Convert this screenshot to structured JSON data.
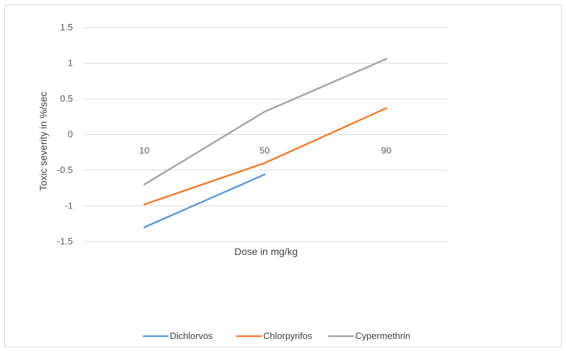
{
  "chart_data": {
    "type": "line",
    "title": "",
    "xlabel": "Dose in mg/kg",
    "ylabel": "Toxic severity in %/sec",
    "categories": [
      "10",
      "50",
      "90"
    ],
    "ylim": [
      -1.5,
      1.5
    ],
    "y_ticks": [
      1.5,
      1,
      0.5,
      0,
      -0.5,
      -1,
      -1.5
    ],
    "y_tick_labels": [
      "1.5",
      "1",
      "0.5",
      "0",
      "-0.5",
      "-1",
      "-1.5"
    ],
    "grid": true,
    "legend_position": "bottom",
    "series": [
      {
        "name": "Dichlorvos",
        "color": "#5b9bd5",
        "values": [
          -1.3,
          -0.56,
          null
        ]
      },
      {
        "name": "Chlorpyrifos",
        "color": "#ed7d31",
        "values": [
          -0.98,
          -0.4,
          0.37
        ]
      },
      {
        "name": "Cypermethrin",
        "color": "#a5a5a5",
        "values": [
          -0.7,
          0.32,
          1.06
        ]
      }
    ]
  }
}
